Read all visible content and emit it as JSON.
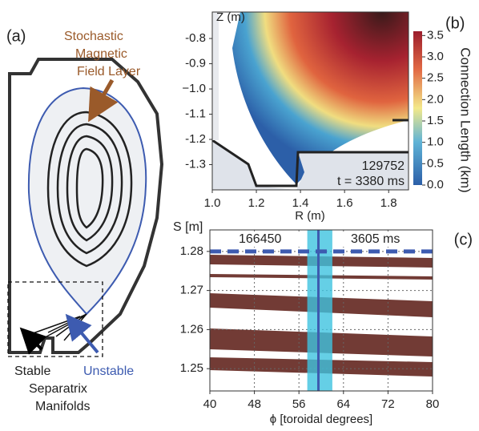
{
  "panel_labels": [
    "(a)",
    "(b)",
    "(c)"
  ],
  "diagram": {
    "stochastic_label": [
      "Stochastic",
      "Magnetic",
      "Field Layer"
    ],
    "stable_label": "Stable",
    "unstable_label": "Unstable",
    "manifolds_label": [
      "Separatrix",
      "Manifolds"
    ]
  },
  "chart_data": [
    {
      "type": "heatmap",
      "xlabel": "R (m)",
      "ylabel": "Z (m)",
      "colorbar_label": "Connection Length (km)",
      "xlim": [
        1.0,
        1.89
      ],
      "xticks": [
        {
          "value": 1.0,
          "label": "1.0"
        },
        1.2,
        1.4,
        1.6,
        1.8
      ],
      "ylim": [
        -1.4,
        -0.695
      ],
      "yticks": [
        -0.8,
        -0.9,
        {
          "value": -1.0,
          "label": "−1.0"
        },
        -1.1,
        -1.2,
        -1.3
      ],
      "clim": [
        0,
        3.6
      ],
      "cticks": [
        {
          "value": 0,
          "label": "0.0"
        },
        0.5,
        {
          "value": 1,
          "label": "1.0"
        },
        1.5,
        {
          "value": 2,
          "label": "2.0"
        },
        2.5,
        {
          "value": 3,
          "label": "3.0"
        },
        3.5
      ],
      "annotations": [
        "129752",
        "t = 3380 ms"
      ]
    },
    {
      "type": "scatter",
      "xlabel": "ϕ [toroidal degrees]",
      "ylabel": "S [m]",
      "xlim": [
        40,
        80
      ],
      "xticks": [
        40,
        48,
        56,
        64,
        72,
        80
      ],
      "ylim": [
        1.2443,
        1.2855
      ],
      "yticks": [
        1.25,
        1.26,
        1.27,
        1.28
      ],
      "grid": true,
      "annotations": [
        "166450",
        "3605 ms"
      ],
      "hline": 1.28,
      "vline": 59.5,
      "span": [
        57.5,
        62
      ]
    }
  ]
}
